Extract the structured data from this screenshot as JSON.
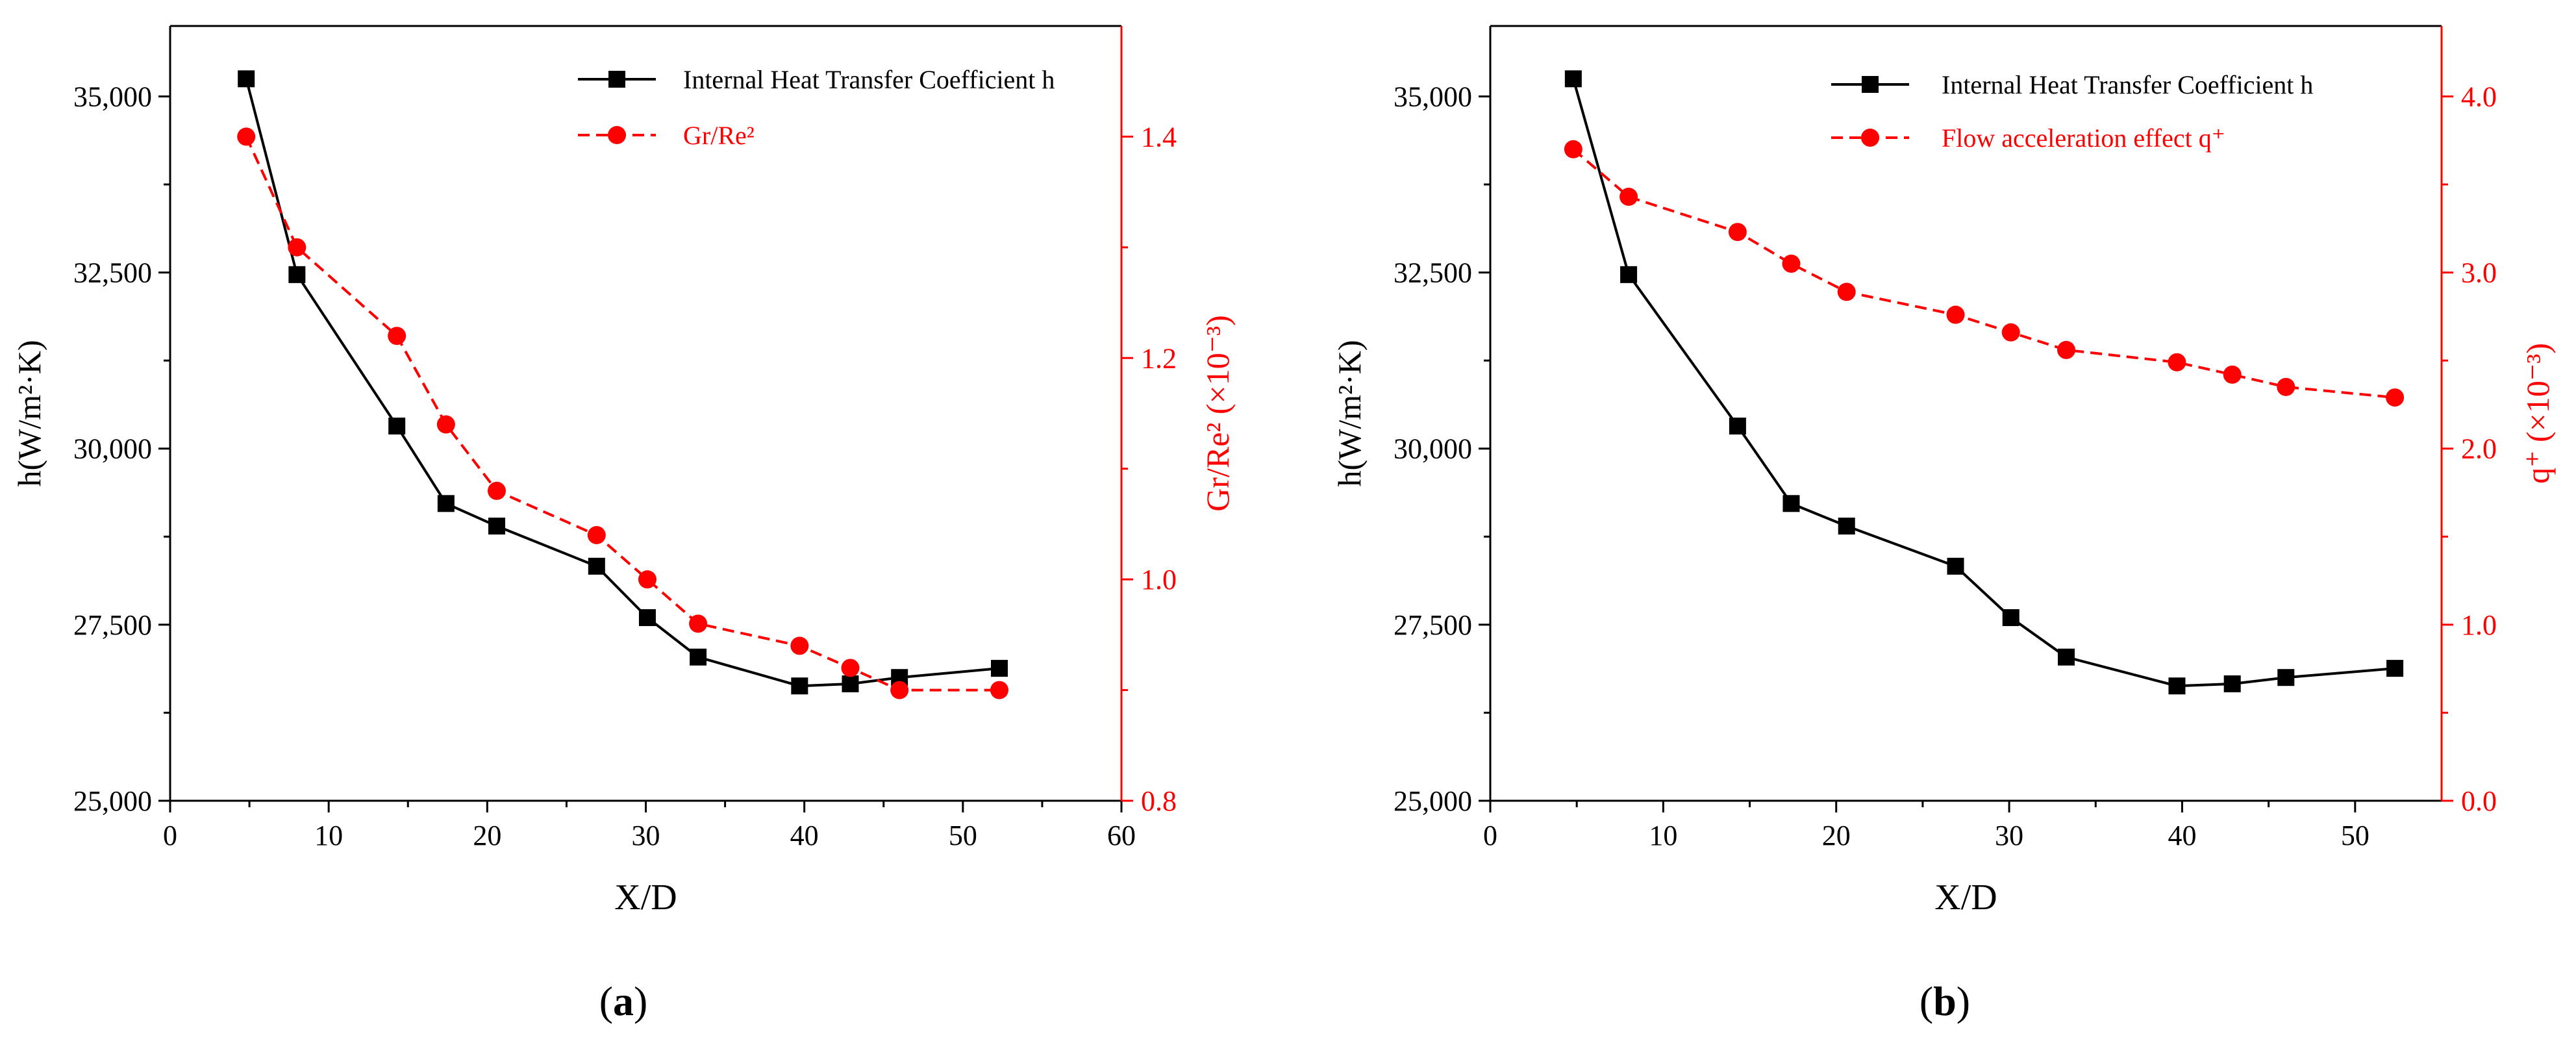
{
  "chart_data": [
    {
      "panel": "(a)",
      "type": "line",
      "xlabel": "X/D",
      "xlim": [
        0,
        60
      ],
      "xticks": [
        0,
        10,
        20,
        30,
        40,
        50,
        60
      ],
      "ylabel_left": "h(W/m²·K)",
      "ylim_left": [
        25000,
        36000
      ],
      "yticks_left": [
        "25,000",
        "27,500",
        "30,000",
        "32,500",
        "35,000"
      ],
      "ylabel_right": "Gr/Re² (×10⁻³)",
      "ylim_right": [
        0.8,
        1.5
      ],
      "yticks_right": [
        "0.8",
        "1.0",
        "1.2",
        "1.4"
      ],
      "legend_position": "top-right",
      "series": [
        {
          "name": "Internal Heat Transfer Coefficient h",
          "axis": "left",
          "color": "#000000",
          "marker": "square",
          "line": "solid",
          "x": [
            4.8,
            8.0,
            14.3,
            17.4,
            20.6,
            26.9,
            30.1,
            33.3,
            39.7,
            42.9,
            46.0,
            52.3
          ],
          "y": [
            35250,
            32470,
            30320,
            29220,
            28900,
            28330,
            27600,
            27040,
            26630,
            26660,
            26750,
            26880
          ]
        },
        {
          "name": "Gr/Re²",
          "axis": "right",
          "color": "#ff0000",
          "marker": "circle",
          "line": "dashed",
          "x": [
            4.8,
            8.0,
            14.3,
            17.4,
            20.6,
            26.9,
            30.1,
            33.3,
            39.7,
            42.9,
            46.0,
            52.3
          ],
          "y": [
            1.4,
            1.3,
            1.22,
            1.14,
            1.08,
            1.04,
            1.0,
            0.96,
            0.94,
            0.92,
            0.9,
            0.9
          ]
        }
      ]
    },
    {
      "panel": "(b)",
      "type": "line",
      "xlabel": "X/D",
      "xlim": [
        0,
        55
      ],
      "xticks": [
        0,
        10,
        20,
        30,
        40,
        50
      ],
      "ylabel_left": "h(W/m²·K)",
      "ylim_left": [
        25000,
        36000
      ],
      "yticks_left": [
        "25,000",
        "27,500",
        "30,000",
        "32,500",
        "35,000"
      ],
      "ylabel_right": "q⁺ (×10⁻³)",
      "ylim_right": [
        0.0,
        4.4
      ],
      "yticks_right": [
        "0.0",
        "1.0",
        "2.0",
        "3.0",
        "4.0"
      ],
      "legend_position": "top-right",
      "series": [
        {
          "name": "Internal Heat Transfer Coefficient h",
          "axis": "left",
          "color": "#000000",
          "marker": "square",
          "line": "solid",
          "x": [
            4.8,
            8.0,
            14.3,
            17.4,
            20.6,
            26.9,
            30.1,
            33.3,
            39.7,
            42.9,
            46.0,
            52.3
          ],
          "y": [
            35250,
            32470,
            30320,
            29220,
            28900,
            28330,
            27600,
            27040,
            26630,
            26660,
            26750,
            26880
          ]
        },
        {
          "name": "Flow acceleration effect q⁺",
          "axis": "right",
          "color": "#ff0000",
          "marker": "circle",
          "line": "dashed",
          "x": [
            4.8,
            8.0,
            14.3,
            17.4,
            20.6,
            26.9,
            30.1,
            33.3,
            39.7,
            42.9,
            46.0,
            52.3
          ],
          "y": [
            3.7,
            3.43,
            3.23,
            3.05,
            2.89,
            2.76,
            2.66,
            2.56,
            2.49,
            2.42,
            2.35,
            2.29
          ]
        }
      ]
    }
  ]
}
